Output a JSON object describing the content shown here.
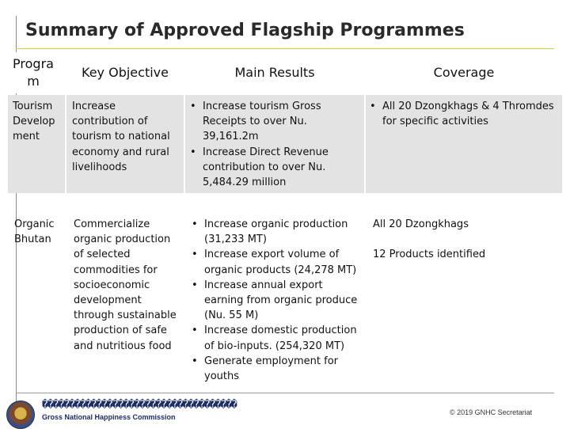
{
  "title": "Summary of Approved Flagship Programmes",
  "table": {
    "headers": [
      "Progra m",
      "Key Objective",
      "Main Results",
      "Coverage"
    ],
    "rows": [
      {
        "programme": "Tourism Develop ment",
        "objective": "Increase contribution of tourism to national economy and rural livelihoods",
        "results": [
          "Increase tourism Gross Receipts to over Nu. 39,161.2m",
          "Increase Direct Revenue contribution to over Nu. 5,484.29 million"
        ],
        "coverage": [
          "All 20 Dzongkhags & 4 Thromdes for specific activities"
        ]
      },
      {
        "programme": "Organic Bhutan",
        "objective": "Commercialize organic production of selected commodities for socioeconomic development through sustainable production of safe and nutritious food",
        "results": [
          "Increase organic production (31,233 MT)",
          "Increase export volume of organic products (24,278 MT)",
          "Increase annual export earning from organic produce (Nu. 55 M)",
          "Increase domestic production of bio-inputs. (254,320 MT)",
          "Generate employment for youths"
        ],
        "coverage": [
          "All 20 Dzongkhags",
          "12 Products identified"
        ]
      }
    ]
  },
  "footer": {
    "glyphs": "������������������������������������",
    "organization": "Gross National Happiness Commission",
    "copyright": "© 2019 GNHC Secretariat"
  }
}
